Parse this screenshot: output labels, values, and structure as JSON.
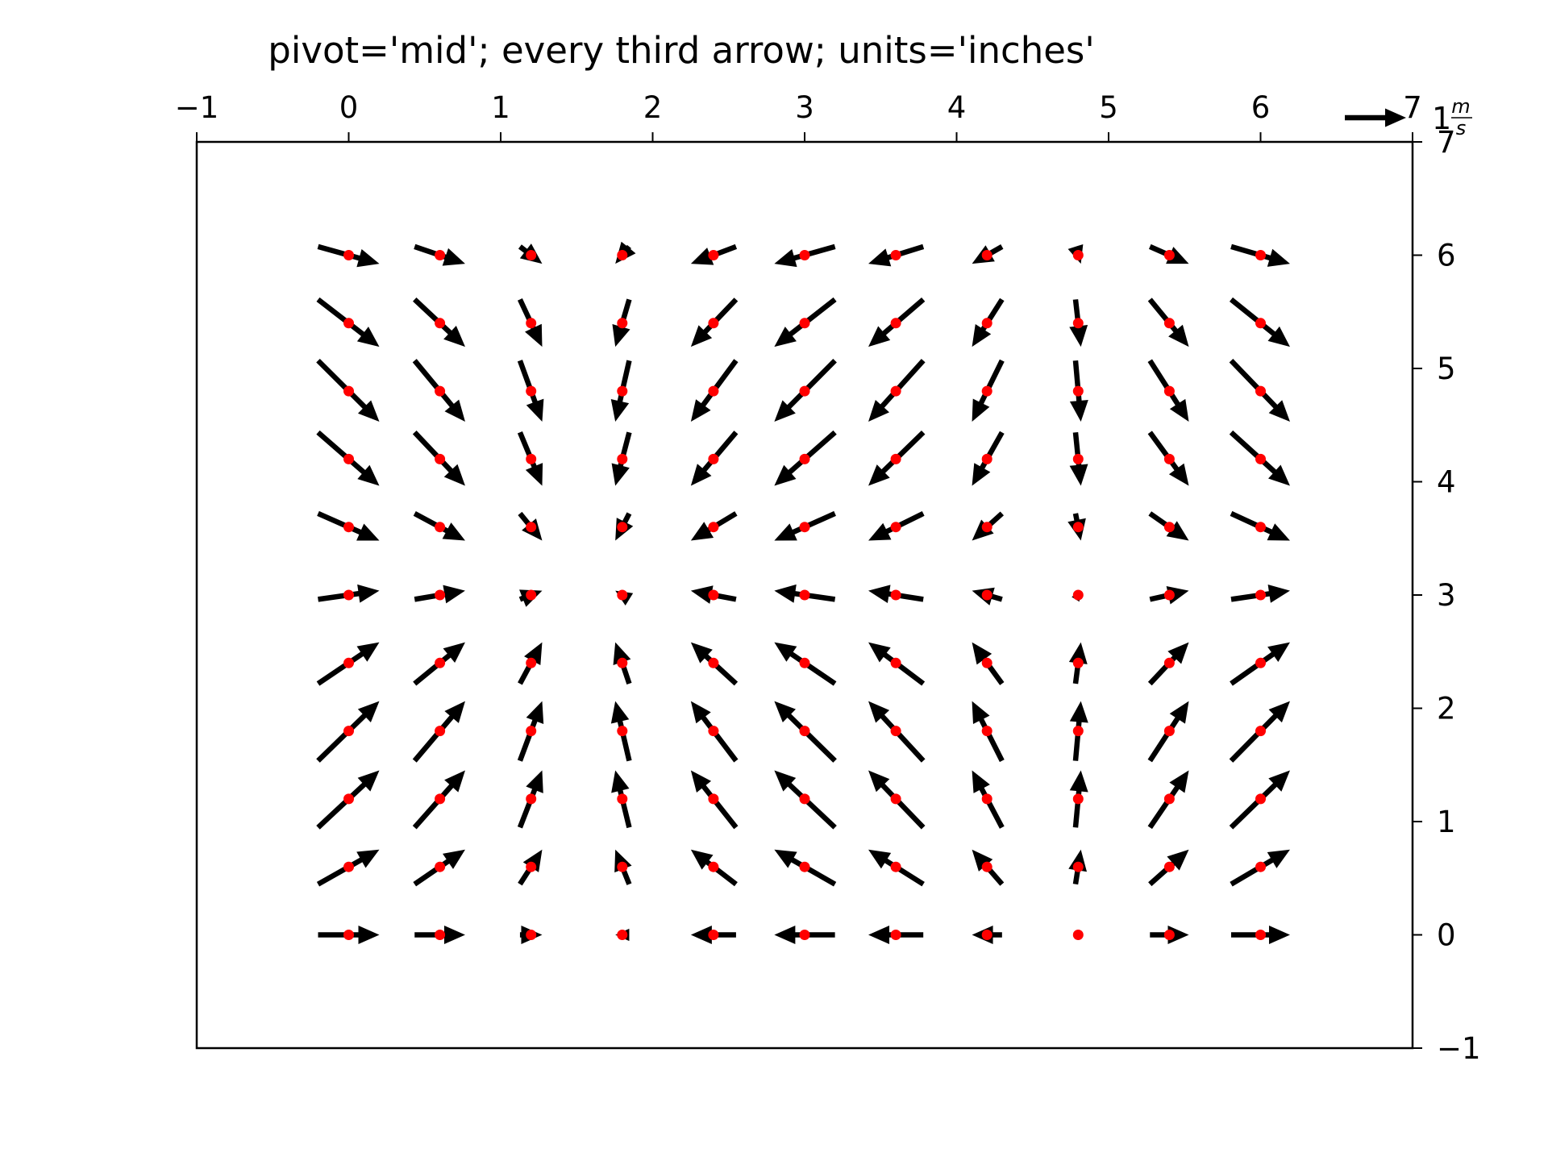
{
  "chart_data": {
    "type": "quiver",
    "title": "pivot='mid'; every third arrow; units='inches'",
    "xlabel": "",
    "ylabel": "",
    "xlim": [
      -1,
      7
    ],
    "ylim": [
      -1,
      7
    ],
    "x_ticks": [
      -1,
      0,
      1,
      2,
      3,
      4,
      5,
      6,
      7
    ],
    "x_tick_labels": [
      "−1",
      "0",
      "1",
      "2",
      "3",
      "4",
      "5",
      "6",
      "7"
    ],
    "x_ticks_position": "top",
    "y_ticks": [
      -1,
      0,
      1,
      2,
      3,
      4,
      5,
      6,
      7
    ],
    "y_tick_labels": [
      "−1",
      "0",
      "1",
      "2",
      "3",
      "4",
      "5",
      "6",
      "7"
    ],
    "y_ticks_position": "right",
    "grid": false,
    "pivot": "mid",
    "arrow_color": "#000000",
    "point_color": "#ff0000",
    "x": [
      0,
      0.6,
      1.2,
      1.8,
      2.4,
      3.0,
      3.6,
      4.2,
      4.8,
      5.4,
      6.0
    ],
    "y": [
      0,
      0.6,
      1.2,
      1.8,
      2.4,
      3.0,
      3.6,
      4.2,
      4.8,
      5.4,
      6.0
    ],
    "field": {
      "u": "cos(x)",
      "v": "sin(y)"
    },
    "quiver_key": {
      "value": 1,
      "label_num": "1",
      "label_top": "m",
      "label_bottom": "s",
      "position": "top-right"
    }
  }
}
